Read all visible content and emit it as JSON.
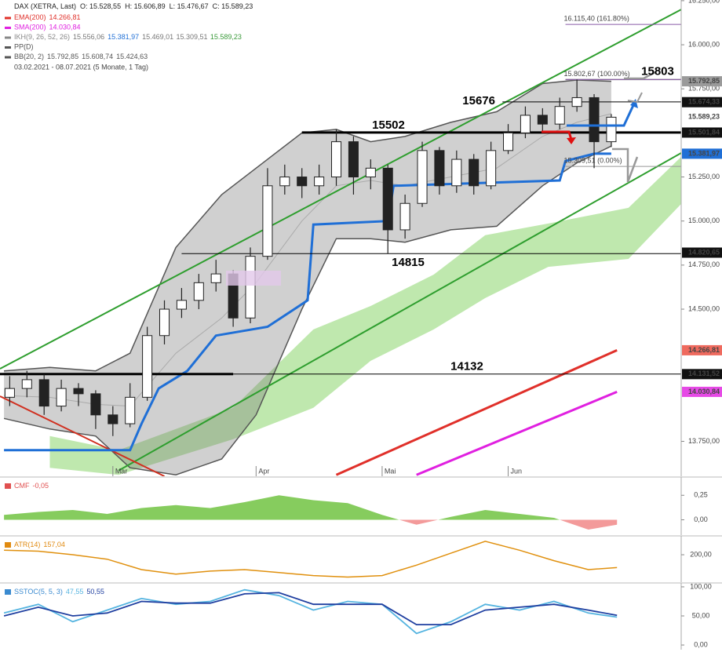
{
  "header": {
    "symbol": "DAX (XETRA, Last)",
    "ohlc": [
      "O: 15.528,55",
      "H: 15.606,89",
      "L: 15.476,67",
      "C: 15.589,23"
    ],
    "indicators": [
      {
        "name": "EMA(200)",
        "values": [
          "14.266,81"
        ],
        "color": "#e0302a",
        "colors": [
          "#e0302a"
        ]
      },
      {
        "name": "SMA(200)",
        "values": [
          "14.030,84"
        ],
        "color": "#e020e0",
        "colors": [
          "#e020e0"
        ]
      },
      {
        "name": "IKH(9, 26, 52, 26)",
        "values": [
          "15.556,06",
          "15.381,97",
          "15.469,01",
          "15.309,51",
          "15.589,23"
        ],
        "color": "#888888",
        "colors": [
          "#777777",
          "#1f6fd6",
          "#777777",
          "#777777",
          "#3a9a3a"
        ]
      },
      {
        "name": "PP(D)",
        "values": [],
        "color": "#555555",
        "colors": []
      },
      {
        "name": "BB(20, 2)",
        "values": [
          "15.792,85",
          "15.608,74",
          "15.424,63"
        ],
        "color": "#555555",
        "colors": [
          "#555555",
          "#555555",
          "#555555"
        ]
      }
    ],
    "range": "03.02.2021 - 08.07.2021 (5 Monate, 1 Tag)"
  },
  "chart_data": [
    {
      "type": "candlestick",
      "x": [
        1,
        4,
        7,
        10,
        13,
        16,
        19,
        22,
        25,
        28,
        31,
        34,
        37,
        40,
        43,
        46,
        49,
        52,
        55,
        58,
        61,
        64,
        67,
        70,
        73,
        76,
        79,
        82,
        85,
        88,
        91,
        94,
        97,
        100,
        103,
        106
      ],
      "open": [
        14000,
        14050,
        14100,
        13950,
        14050,
        14020,
        13900,
        13850,
        14000,
        14350,
        14500,
        14550,
        14650,
        14700,
        14450,
        14800,
        15200,
        15250,
        15200,
        15250,
        15450,
        15250,
        15300,
        14950,
        15100,
        15400,
        15200,
        15350,
        15200,
        15400,
        15500,
        15600,
        15550,
        15650,
        15700,
        15450
      ],
      "high": [
        14120,
        14150,
        14130,
        14100,
        14080,
        14040,
        13950,
        14080,
        14400,
        14550,
        14620,
        14700,
        14780,
        14720,
        14850,
        15300,
        15320,
        15300,
        15320,
        15520,
        15480,
        15350,
        15320,
        15150,
        15450,
        15420,
        15400,
        15380,
        15450,
        15550,
        15650,
        15640,
        15700,
        15803,
        15720,
        15607
      ],
      "low": [
        13950,
        14000,
        13900,
        13920,
        13950,
        13820,
        13780,
        13830,
        13980,
        14300,
        14450,
        14500,
        14600,
        14400,
        14420,
        14780,
        15150,
        15130,
        15150,
        15200,
        15150,
        15180,
        14815,
        14900,
        15080,
        15150,
        15160,
        15150,
        15180,
        15380,
        15470,
        15500,
        15520,
        15620,
        15300,
        15420
      ],
      "close": [
        14050,
        14100,
        13950,
        14050,
        14020,
        13900,
        13850,
        14000,
        14350,
        14500,
        14550,
        14650,
        14700,
        14450,
        14800,
        15200,
        15250,
        15200,
        15250,
        15450,
        15250,
        15300,
        14950,
        15100,
        15400,
        15200,
        15350,
        15200,
        15400,
        15500,
        15600,
        15550,
        15650,
        15700,
        15450,
        15589
      ],
      "xlim": [
        -0.7,
        118.2
      ],
      "xticks": [
        {
          "value": 19,
          "label": "Mar"
        },
        {
          "value": 44,
          "label": "Apr"
        },
        {
          "value": 66,
          "label": "Mai"
        },
        {
          "value": 88,
          "label": "Jun"
        }
      ],
      "ylim": [
        13552,
        16254
      ],
      "yticks": [
        {
          "value": 16250,
          "label": "16.250,00"
        },
        {
          "value": 16000,
          "label": "16.000,00"
        },
        {
          "value": 15750,
          "label": "15.750,00"
        },
        {
          "value": 15250,
          "label": "15.250,00"
        },
        {
          "value": 15000,
          "label": "15.000,00"
        },
        {
          "value": 14750,
          "label": "14.750,00"
        },
        {
          "value": 14500,
          "label": "14.500,00"
        },
        {
          "value": 13750,
          "label": "13.750,00"
        }
      ],
      "bollinger": {
        "x": [
          0,
          8,
          16,
          22,
          30,
          38,
          44,
          52,
          58,
          64,
          70,
          78,
          86,
          94,
          100,
          106
        ],
        "upper": [
          14150,
          14170,
          14150,
          14250,
          14850,
          15150,
          15300,
          15500,
          15520,
          15450,
          15480,
          15560,
          15620,
          15780,
          15800,
          15793
        ],
        "middle": [
          14010,
          14000,
          13960,
          13950,
          14250,
          14450,
          14650,
          15000,
          15200,
          15230,
          15200,
          15250,
          15300,
          15480,
          15560,
          15609
        ],
        "lower": [
          13880,
          13820,
          13780,
          13600,
          13560,
          13650,
          13900,
          14500,
          14900,
          14900,
          14880,
          14950,
          14970,
          15200,
          15330,
          15425
        ]
      },
      "cloud": {
        "x": [
          8,
          20,
          40,
          54,
          64,
          75,
          84,
          95,
          109,
          118.2
        ],
        "upper": [
          13780,
          13700,
          13940,
          14385,
          14518,
          14696,
          14920,
          14986,
          15075,
          15364
        ],
        "lower": [
          13600,
          13560,
          13762,
          13940,
          14207,
          14385,
          14563,
          14740,
          14785,
          15097
        ],
        "color": "#bfe8ae"
      },
      "kijun": {
        "x": [
          0,
          22,
          24,
          27,
          32,
          37,
          46,
          53,
          54,
          67,
          68,
          97,
          98,
          103,
          106
        ],
        "values": [
          13700,
          13700,
          13850,
          14050,
          14150,
          14350,
          14400,
          14550,
          14980,
          15000,
          15200,
          15230,
          15340,
          15382,
          15382
        ],
        "color": "#1f6fd6"
      },
      "ema": {
        "x": [
          58,
          107
        ],
        "values": [
          13560,
          14267
        ],
        "color": "#e0302a"
      },
      "sma": {
        "x": [
          72,
          107
        ],
        "values": [
          13560,
          14031
        ],
        "color": "#e020e0"
      },
      "trendlines": [
        {
          "x": [
            -0.7,
            118.2
          ],
          "values": [
            14162,
            16200
          ],
          "color": "#2e9e2e"
        },
        {
          "x": [
            20,
            118.2
          ],
          "values": [
            13584,
            15386
          ],
          "color": "#2e9e2e"
        },
        {
          "x": [
            -0.7,
            28
          ],
          "values": [
            14006,
            13552
          ],
          "color": "#d03020"
        }
      ],
      "levels": [
        {
          "value": 15502,
          "label": "15502",
          "x": [
            52,
            118.2
          ],
          "color": "#000000",
          "width": 3
        },
        {
          "value": 15676,
          "label": "15676",
          "x": [
            87,
            118.2
          ],
          "color": "#000000",
          "width": 1
        },
        {
          "value": 15803,
          "label": "15803",
          "x": [
            98,
            118.2
          ],
          "color": "#8a8a8a",
          "width": 1.5
        },
        {
          "value": 14815,
          "label": "14815",
          "x": [
            31,
            118.2
          ],
          "color": "#000000",
          "width": 1
        },
        {
          "value": 14132,
          "label": "14132",
          "x": [
            -0.7,
            40
          ],
          "color": "#000000",
          "width": 3
        },
        {
          "value": 14132,
          "x": [
            40,
            118.2
          ],
          "color": "#000000",
          "width": 1
        }
      ],
      "fib": [
        {
          "value": 16115.4,
          "label": "16.115,40 (161.80%)",
          "x": [
            98,
            118.2
          ],
          "color": "#8a5aa8"
        },
        {
          "value": 15802.67,
          "label": "15.802,67 (100.00%)",
          "x": [
            98,
            118.2
          ],
          "color": "#8a5aa8"
        },
        {
          "value": 15309.51,
          "label": "15.309,51 (0.00%)",
          "x": [
            98,
            118.2
          ],
          "color": "#999999"
        }
      ],
      "price_tags": [
        {
          "value": 15792.85,
          "label": "15.792,85",
          "color": "#9a9a9a",
          "text_color": "#ffffff"
        },
        {
          "value": 15674.33,
          "label": "15.674,33",
          "color": "#111111",
          "text_color": "#ffffff"
        },
        {
          "value": 15589.23,
          "label": "15.589,23",
          "color": "#ffffff",
          "text_color": "#111111"
        },
        {
          "value": 15501.84,
          "label": "15.501,84",
          "color": "#111111",
          "text_color": "#ffffff"
        },
        {
          "value": 15381.97,
          "label": "15.381,97",
          "color": "#1f6fd6",
          "text_color": "#ffffff"
        },
        {
          "value": 14820.65,
          "label": "14.820,65",
          "color": "#111111",
          "text_color": "#ffffff"
        },
        {
          "value": 14266.81,
          "label": "14.266,81",
          "color": "#ef6a5e",
          "text_color": "#222222"
        },
        {
          "value": 14131.52,
          "label": "14.131,52",
          "color": "#111111",
          "text_color": "#ffffff"
        },
        {
          "value": 14030.84,
          "label": "14.030,84",
          "color": "#e64ae6",
          "text_color": "#222222"
        }
      ]
    },
    {
      "type": "area",
      "title": "CMF",
      "value_label": "-0,05",
      "title_color": "#e05050",
      "x": [
        0,
        6,
        12,
        18,
        24,
        30,
        36,
        42,
        48,
        54,
        60,
        66,
        72,
        78,
        84,
        90,
        96,
        102,
        107
      ],
      "values": [
        0.05,
        0.08,
        0.1,
        0.06,
        0.12,
        0.15,
        0.12,
        0.18,
        0.25,
        0.2,
        0.17,
        0.05,
        -0.05,
        0.03,
        0.1,
        0.06,
        0.02,
        -0.1,
        -0.05
      ],
      "color": "#86cc5e",
      "negative_color": "#f39a9a",
      "xlim": [
        -0.7,
        118.2
      ],
      "ylim": [
        -0.156,
        0.42
      ],
      "yticks": [
        {
          "value": 0.25,
          "label": "0,25"
        },
        {
          "value": 0,
          "label": "0,00"
        }
      ]
    },
    {
      "type": "line",
      "title": "ATR(14)",
      "value_label": "157,04",
      "title_color": "#e08a10",
      "x": [
        0,
        6,
        12,
        18,
        24,
        30,
        36,
        42,
        48,
        54,
        60,
        66,
        72,
        78,
        84,
        90,
        96,
        102,
        107
      ],
      "values": [
        215,
        212,
        200,
        185,
        150,
        135,
        145,
        150,
        140,
        130,
        125,
        130,
        165,
        205,
        245,
        215,
        180,
        150,
        157
      ],
      "color": "#e0900e",
      "xlim": [
        -0.7,
        118.2
      ],
      "ylim": [
        108,
        258
      ],
      "yticks": [
        {
          "value": 200,
          "label": "200,00"
        }
      ]
    },
    {
      "type": "line",
      "title": "SSTOC(5, 5, 3)",
      "title_color": "#3a8ad0",
      "x": [
        0,
        6,
        12,
        18,
        24,
        30,
        36,
        42,
        48,
        54,
        60,
        66,
        72,
        78,
        84,
        90,
        96,
        102,
        107
      ],
      "series": [
        {
          "color": "#55b4e0",
          "value_label": "47,55",
          "values": [
            55,
            70,
            40,
            60,
            80,
            70,
            75,
            95,
            85,
            60,
            75,
            70,
            20,
            40,
            70,
            60,
            75,
            55,
            48
          ]
        },
        {
          "color": "#1f3fa0",
          "value_label": "50,55",
          "values": [
            50,
            65,
            50,
            55,
            75,
            72,
            72,
            88,
            90,
            70,
            70,
            70,
            35,
            35,
            60,
            65,
            70,
            60,
            51
          ]
        }
      ],
      "xlim": [
        -0.7,
        118.2
      ],
      "ylim": [
        -8,
        104
      ],
      "yticks": [
        {
          "value": 100,
          "label": "100,00"
        },
        {
          "value": 50,
          "label": "50,00"
        },
        {
          "value": 0,
          "label": "0,00"
        }
      ]
    }
  ]
}
